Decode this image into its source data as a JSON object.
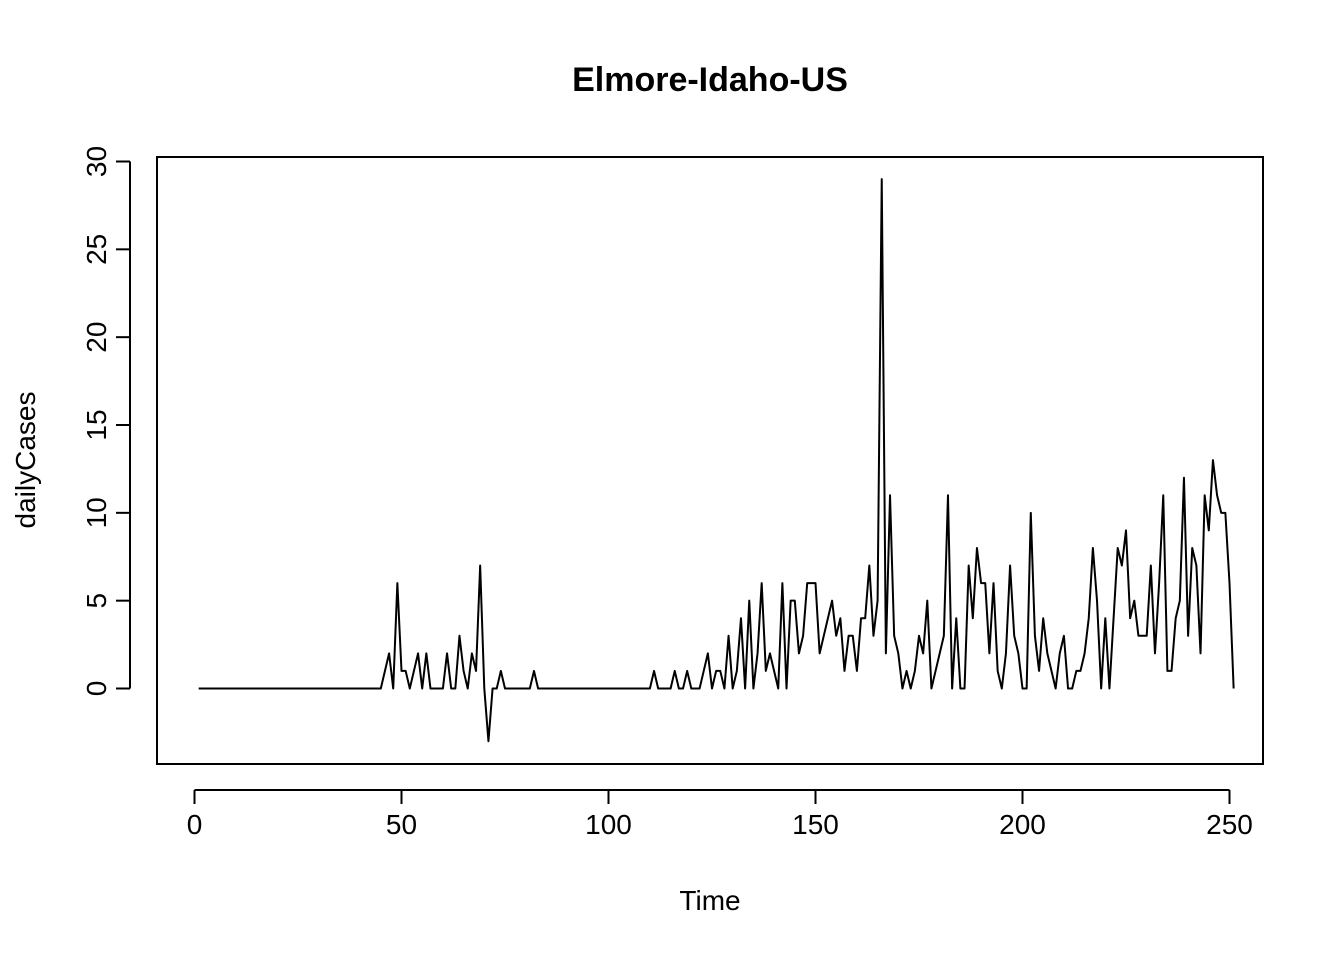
{
  "chart_data": {
    "type": "line",
    "title": "Elmore-Idaho-US",
    "xlabel": "Time",
    "ylabel": "dailyCases",
    "xlim": [
      1,
      248
    ],
    "ylim": [
      -3,
      29
    ],
    "x_ticks": [
      0,
      50,
      100,
      150,
      200,
      250
    ],
    "y_ticks": [
      0,
      5,
      10,
      15,
      20,
      25,
      30
    ],
    "x_tick_labels": [
      "0",
      "50",
      "100",
      "150",
      "200",
      "250"
    ],
    "y_tick_labels": [
      "0",
      "5",
      "10",
      "15",
      "20",
      "25",
      "30"
    ],
    "grid": false,
    "line_color": "#000000",
    "series": [
      {
        "values": [
          0,
          0,
          0,
          0,
          0,
          0,
          0,
          0,
          0,
          0,
          0,
          0,
          0,
          0,
          0,
          0,
          0,
          0,
          0,
          0,
          0,
          0,
          0,
          0,
          0,
          0,
          0,
          0,
          0,
          0,
          0,
          0,
          0,
          0,
          0,
          0,
          0,
          0,
          0,
          0,
          0,
          0,
          0,
          0,
          0,
          1,
          2,
          0,
          6,
          1,
          1,
          0,
          1,
          2,
          0,
          2,
          0,
          0,
          0,
          0,
          2,
          0,
          0,
          3,
          1,
          0,
          2,
          1,
          7,
          0,
          -3,
          0,
          0,
          1,
          0,
          0,
          0,
          0,
          0,
          0,
          0,
          1,
          0,
          0,
          0,
          0,
          0,
          0,
          0,
          0,
          0,
          0,
          0,
          0,
          0,
          0,
          0,
          0,
          0,
          0,
          0,
          0,
          0,
          0,
          0,
          0,
          0,
          0,
          0,
          0,
          1,
          0,
          0,
          0,
          0,
          1,
          0,
          0,
          1,
          0,
          0,
          0,
          1,
          2,
          0,
          1,
          1,
          0,
          3,
          0,
          1,
          4,
          0,
          5,
          0,
          2,
          6,
          1,
          2,
          1,
          0,
          6,
          0,
          5,
          5,
          2,
          3,
          6,
          6,
          6,
          2,
          3,
          4,
          5,
          3,
          4,
          1,
          3,
          3,
          1,
          4,
          4,
          7,
          3,
          5,
          29,
          2,
          11,
          3,
          2,
          0,
          1,
          0,
          1,
          3,
          2,
          5,
          0,
          1,
          2,
          3,
          11,
          0,
          4,
          0,
          0,
          7,
          4,
          8,
          6,
          6,
          2,
          6,
          1,
          0,
          2,
          7,
          3,
          2,
          0,
          0,
          10,
          3,
          1,
          4,
          2,
          1,
          0,
          2,
          3,
          0,
          0,
          1,
          1,
          2,
          4,
          8,
          5,
          0,
          4,
          0,
          4,
          8,
          7,
          9,
          4,
          5,
          3,
          3,
          3,
          7,
          2,
          6,
          11,
          1,
          1,
          4,
          5,
          12,
          3,
          8,
          7,
          2,
          11,
          9,
          13,
          11,
          10,
          10,
          6,
          0
        ]
      }
    ]
  }
}
